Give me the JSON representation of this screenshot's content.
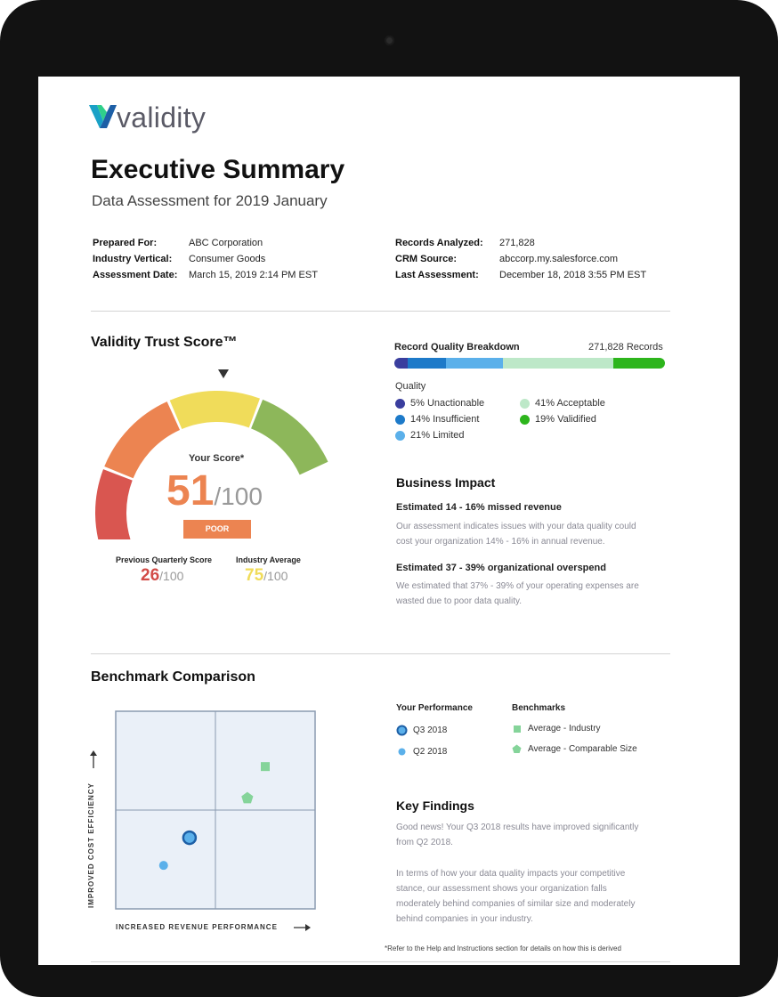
{
  "brand": {
    "name": "validity"
  },
  "header": {
    "title": "Executive Summary",
    "subtitle": "Data Assessment for 2019 January"
  },
  "meta": {
    "left": [
      {
        "label": "Prepared For:",
        "value": "ABC Corporation"
      },
      {
        "label": "Industry Vertical:",
        "value": "Consumer Goods"
      },
      {
        "label": "Assessment Date:",
        "value": "March 15, 2019 2:14 PM EST"
      }
    ],
    "right": [
      {
        "label": "Records Analyzed:",
        "value": "271,828"
      },
      {
        "label": "CRM Source:",
        "value": "abccorp.my.salesforce.com"
      },
      {
        "label": "Last Assessment:",
        "value": "December 18, 2018 3:55 PM EST"
      }
    ]
  },
  "trust_score": {
    "title": "Validity Trust Score™",
    "score_label": "Your Score*",
    "score": "51",
    "score_max": "/100",
    "rating": "POOR",
    "previous": {
      "label": "Previous Quarterly Score",
      "value": "26",
      "max": "/100"
    },
    "industry": {
      "label": "Industry Average",
      "value": "75",
      "max": "/100"
    },
    "gauge_colors": [
      "#b8393a",
      "#d95650",
      "#ec8451",
      "#f0dc5a",
      "#8db75a"
    ]
  },
  "record_quality": {
    "title": "Record Quality Breakdown",
    "records": "271,828 Records",
    "quality_label": "Quality",
    "segments": [
      {
        "label": "5% Unactionable",
        "percent": 5,
        "color": "#3a3e9e"
      },
      {
        "label": "14% Insufficient",
        "percent": 14,
        "color": "#1d7ac9"
      },
      {
        "label": "21% Limited",
        "percent": 21,
        "color": "#5bb0ea"
      },
      {
        "label": "41% Acceptable",
        "percent": 41,
        "color": "#bde8c8"
      },
      {
        "label": "19% Validified",
        "percent": 19,
        "color": "#2db51c"
      }
    ]
  },
  "business_impact": {
    "title": "Business Impact",
    "items": [
      {
        "heading": "Estimated 14 - 16% missed revenue",
        "text1": "Our assessment indicates issues with your data quality could",
        "text2": "cost your organization 14% - 16% in annual revenue."
      },
      {
        "heading": "Estimated 37 - 39% organizational overspend",
        "text1": "We estimated that 37% - 39% of your operating expenses are",
        "text2": "wasted due to poor data quality."
      }
    ]
  },
  "benchmark": {
    "title": "Benchmark Comparison",
    "y_axis": "IMPROVED COST EFFICIENCY",
    "x_axis": "INCREASED REVENUE PERFORMANCE",
    "your_performance_label": "Your Performance",
    "benchmarks_label": "Benchmarks",
    "legend": {
      "q3": "Q3 2018",
      "q2": "Q2 2018",
      "industry": "Average - Industry",
      "comparable": "Average - Comparable Size"
    },
    "points": {
      "q3_2018": {
        "revenue": 0.37,
        "efficiency": 0.36
      },
      "q2_2018": {
        "revenue": 0.24,
        "efficiency": 0.22
      },
      "avg_industry": {
        "revenue": 0.75,
        "efficiency": 0.72
      },
      "avg_comparable": {
        "revenue": 0.66,
        "efficiency": 0.56
      }
    }
  },
  "key_findings": {
    "title": "Key Findings",
    "lines": [
      "Good news! Your Q3 2018 results have improved significantly",
      "from Q2 2018.",
      "In terms of how your data quality impacts your competitive",
      "stance, our assessment shows your organization falls",
      "moderately behind companies of similar size and moderately",
      "behind companies in your industry."
    ]
  },
  "footnote": "*Refer to the Help and Instructions section for details on how this is derived"
}
